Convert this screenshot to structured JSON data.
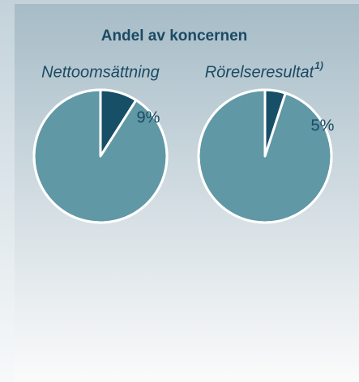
{
  "title": "Andel av koncernen",
  "chart_data": [
    {
      "type": "pie",
      "title": "Nettoomsättning",
      "values": [
        9,
        91
      ],
      "value_labels": [
        "9%",
        null
      ],
      "colors": [
        "#174f66",
        "#6098a5"
      ]
    },
    {
      "type": "pie",
      "title": "Rörelseresultat",
      "title_note": "1)",
      "values": [
        5,
        95
      ],
      "value_labels": [
        "5%",
        null
      ],
      "colors": [
        "#174f66",
        "#6098a5"
      ]
    }
  ]
}
